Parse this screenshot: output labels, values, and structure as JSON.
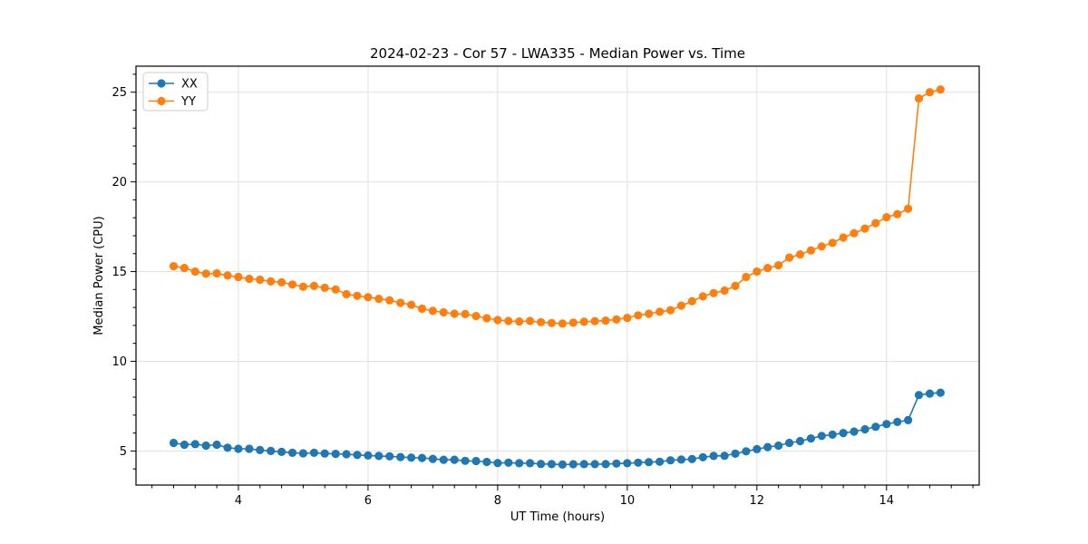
{
  "chart_data": {
    "type": "line",
    "title": "2024-02-23 - Cor 57 - LWA335 - Median Power vs. Time",
    "xlabel": "UT Time (hours)",
    "ylabel": "Median Power (CPU)",
    "grid": true,
    "legend_position": "upper left",
    "xlim": [
      2.42,
      15.43
    ],
    "ylim": [
      3.1,
      26.45
    ],
    "xticks": [
      4,
      6,
      8,
      10,
      12,
      14
    ],
    "yticks": [
      5,
      10,
      15,
      20,
      25
    ],
    "x": [
      3.0,
      3.167,
      3.333,
      3.5,
      3.667,
      3.833,
      4.0,
      4.167,
      4.333,
      4.5,
      4.667,
      4.833,
      5.0,
      5.167,
      5.333,
      5.5,
      5.667,
      5.833,
      6.0,
      6.167,
      6.333,
      6.5,
      6.667,
      6.833,
      7.0,
      7.167,
      7.333,
      7.5,
      7.667,
      7.833,
      8.0,
      8.167,
      8.333,
      8.5,
      8.667,
      8.833,
      9.0,
      9.167,
      9.333,
      9.5,
      9.667,
      9.833,
      10.0,
      10.167,
      10.333,
      10.5,
      10.667,
      10.833,
      11.0,
      11.167,
      11.333,
      11.5,
      11.667,
      11.833,
      12.0,
      12.167,
      12.333,
      12.5,
      12.667,
      12.833,
      13.0,
      13.167,
      13.333,
      13.5,
      13.667,
      13.833,
      14.0,
      14.167,
      14.333,
      14.5,
      14.667,
      14.833
    ],
    "series": [
      {
        "name": "XX",
        "color": "#1f77b4",
        "values": [
          5.45,
          5.35,
          5.38,
          5.3,
          5.35,
          5.18,
          5.12,
          5.12,
          5.05,
          5.0,
          4.95,
          4.9,
          4.87,
          4.9,
          4.86,
          4.84,
          4.82,
          4.78,
          4.75,
          4.72,
          4.7,
          4.66,
          4.63,
          4.61,
          4.56,
          4.51,
          4.51,
          4.45,
          4.44,
          4.39,
          4.33,
          4.35,
          4.32,
          4.32,
          4.28,
          4.27,
          4.24,
          4.26,
          4.27,
          4.27,
          4.27,
          4.3,
          4.32,
          4.35,
          4.38,
          4.4,
          4.48,
          4.52,
          4.55,
          4.65,
          4.72,
          4.73,
          4.85,
          4.98,
          5.1,
          5.22,
          5.3,
          5.45,
          5.55,
          5.7,
          5.84,
          5.91,
          6.0,
          6.08,
          6.21,
          6.35,
          6.5,
          6.62,
          6.72,
          8.12,
          8.2,
          8.25
        ]
      },
      {
        "name": "YY",
        "color": "#ff7f0e",
        "values": [
          15.3,
          15.2,
          15.0,
          14.88,
          14.9,
          14.78,
          14.7,
          14.6,
          14.55,
          14.45,
          14.4,
          14.28,
          14.16,
          14.2,
          14.1,
          14.0,
          13.74,
          13.65,
          13.57,
          13.48,
          13.4,
          13.26,
          13.15,
          12.93,
          12.81,
          12.73,
          12.65,
          12.63,
          12.52,
          12.4,
          12.3,
          12.25,
          12.22,
          12.25,
          12.18,
          12.13,
          12.1,
          12.15,
          12.2,
          12.24,
          12.27,
          12.33,
          12.42,
          12.56,
          12.65,
          12.76,
          12.85,
          13.1,
          13.35,
          13.62,
          13.8,
          13.94,
          14.2,
          14.7,
          15.0,
          15.2,
          15.35,
          15.78,
          15.96,
          16.18,
          16.4,
          16.6,
          16.9,
          17.14,
          17.4,
          17.7,
          18.03,
          18.2,
          18.5,
          24.65,
          25.0,
          25.15
        ]
      }
    ],
    "colors": {
      "grid": "#e0e0e0",
      "spine": "#000000",
      "legend_border": "#cccccc",
      "background": "#ffffff"
    }
  }
}
